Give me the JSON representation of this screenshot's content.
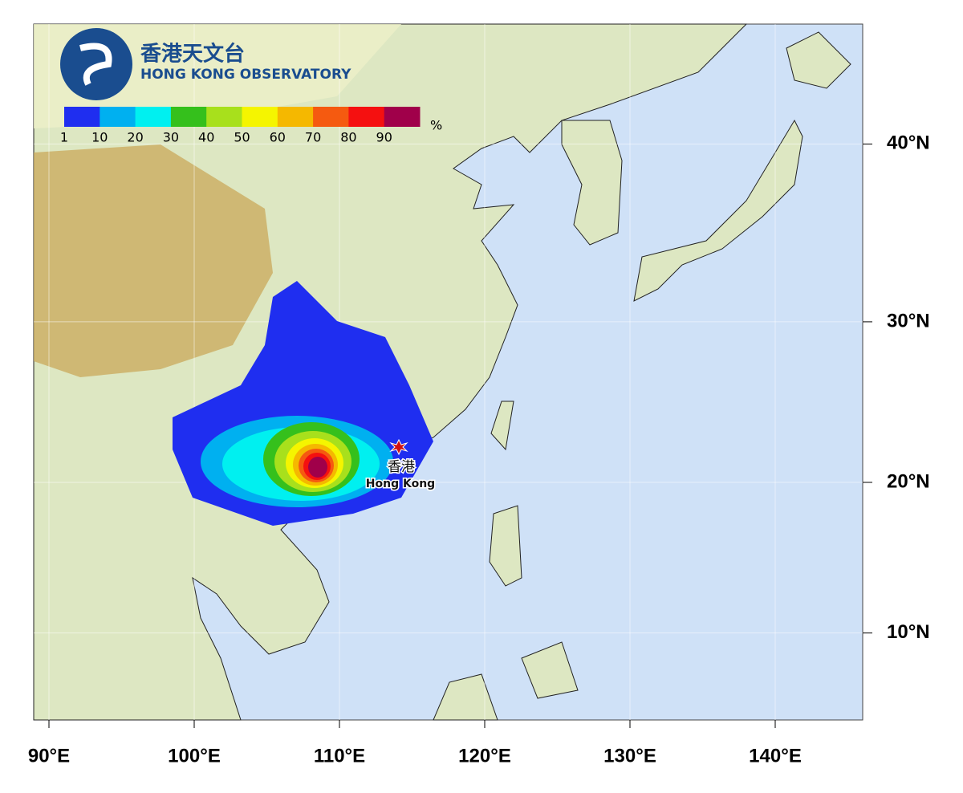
{
  "logo": {
    "name_zh": "香港天文台",
    "name_en": "HONG KONG OBSERVATORY"
  },
  "legend": {
    "levels": [
      1,
      10,
      20,
      30,
      40,
      50,
      60,
      70,
      80,
      90
    ],
    "unit": "%",
    "colors": [
      "#1f2ef0",
      "#00b0f0",
      "#00f0f0",
      "#35c01c",
      "#a8e01c",
      "#f5f500",
      "#f5b800",
      "#f55a10",
      "#f51010",
      "#a0004a"
    ]
  },
  "axes": {
    "xticks": [
      {
        "value": 90,
        "label": "90°E"
      },
      {
        "value": 100,
        "label": "100°E"
      },
      {
        "value": 110,
        "label": "110°E"
      },
      {
        "value": 120,
        "label": "120°E"
      },
      {
        "value": 130,
        "label": "130°E"
      },
      {
        "value": 140,
        "label": "140°E"
      }
    ],
    "yticks": [
      {
        "value": 40,
        "label": "40°N"
      },
      {
        "value": 30,
        "label": "30°N"
      },
      {
        "value": 20,
        "label": "20°N"
      },
      {
        "value": 10,
        "label": "10°N"
      }
    ]
  },
  "places": [
    {
      "name_zh": "香港",
      "name_en": "Hong Kong"
    }
  ]
}
